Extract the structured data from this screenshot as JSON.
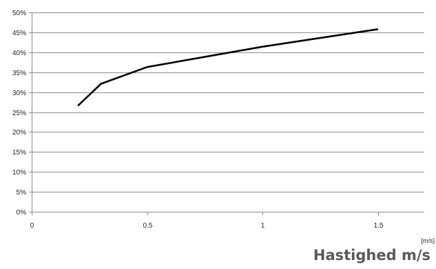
{
  "chart_data": {
    "type": "line",
    "title": "",
    "xlabel": "Hastighed m/s",
    "x_unit": "[m/s]",
    "ylabel": "",
    "xlim": [
      0,
      1.7
    ],
    "ylim": [
      0,
      50
    ],
    "x_ticks": [
      0,
      0.5,
      1,
      1.5
    ],
    "x_tick_labels": [
      "0",
      "0.5",
      "1",
      "1.5"
    ],
    "y_ticks": [
      0,
      5,
      10,
      15,
      20,
      25,
      30,
      35,
      40,
      45,
      50
    ],
    "y_tick_labels": [
      "0%",
      "5%",
      "10%",
      "15%",
      "20%",
      "25%",
      "30%",
      "35%",
      "40%",
      "45%",
      "50%"
    ],
    "grid": true,
    "legend": "none",
    "series": [
      {
        "color": "#000000",
        "x": [
          0.2,
          0.3,
          0.5,
          1.0,
          1.5
        ],
        "y": [
          26.6,
          32.1,
          36.3,
          41.4,
          45.8
        ]
      }
    ]
  }
}
